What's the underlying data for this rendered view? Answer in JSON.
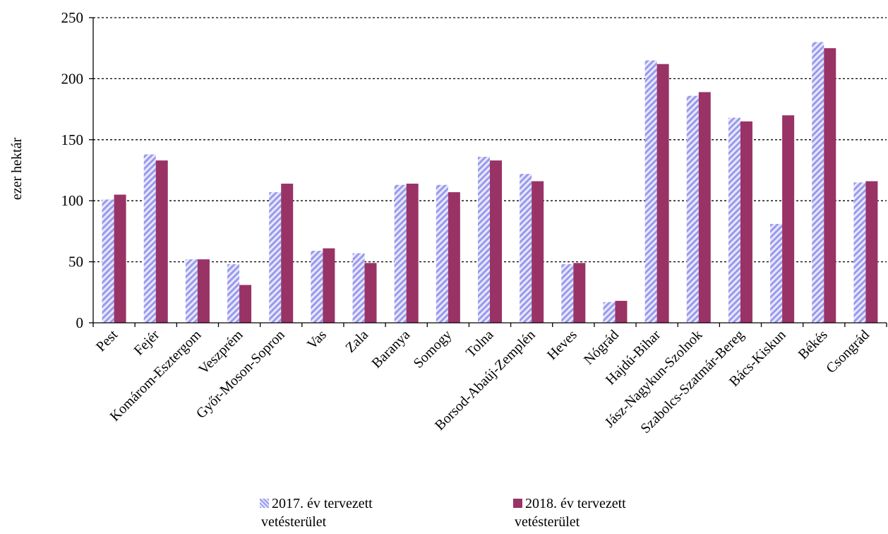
{
  "chart_data": {
    "type": "bar",
    "title": "",
    "xlabel": "",
    "ylabel": "ezer hektár",
    "ylim": [
      0,
      250
    ],
    "yticks": [
      0,
      50,
      100,
      150,
      200,
      250
    ],
    "grid": true,
    "legend_position": "bottom",
    "categories": [
      "Pest",
      "Fejér",
      "Komárom-Esztergom",
      "Veszprém",
      "Győr-Moson-Sopron",
      "Vas",
      "Zala",
      "Baranya",
      "Somogy",
      "Tolna",
      "Borsod-Abaúj-Zemplén",
      "Heves",
      "Nógrád",
      "Hajdú-Bihar",
      "Jász-Nagykun-Szolnok",
      "Szabolcs-Szatmár-Bereg",
      "Bács-Kiskun",
      "Békés",
      "Csongrád"
    ],
    "series": [
      {
        "name": "2017. év tervezett vetésterület",
        "color": "#9999ee",
        "pattern": "diagonal-stripes",
        "values": [
          101,
          138,
          52,
          48,
          107,
          59,
          57,
          113,
          113,
          136,
          122,
          48,
          17,
          215,
          186,
          168,
          81,
          230,
          115
        ]
      },
      {
        "name": "2018. év tervezett vetésterület",
        "color": "#993366",
        "pattern": "solid",
        "values": [
          105,
          133,
          52,
          31,
          114,
          61,
          49,
          114,
          107,
          133,
          116,
          49,
          18,
          212,
          189,
          165,
          170,
          225,
          116
        ]
      }
    ]
  },
  "legend": {
    "items": [
      {
        "label_line1": "2017. év tervezett",
        "label_line2": "vetésterület"
      },
      {
        "label_line1": "2018. év tervezett",
        "label_line2": "vetésterület"
      }
    ]
  }
}
